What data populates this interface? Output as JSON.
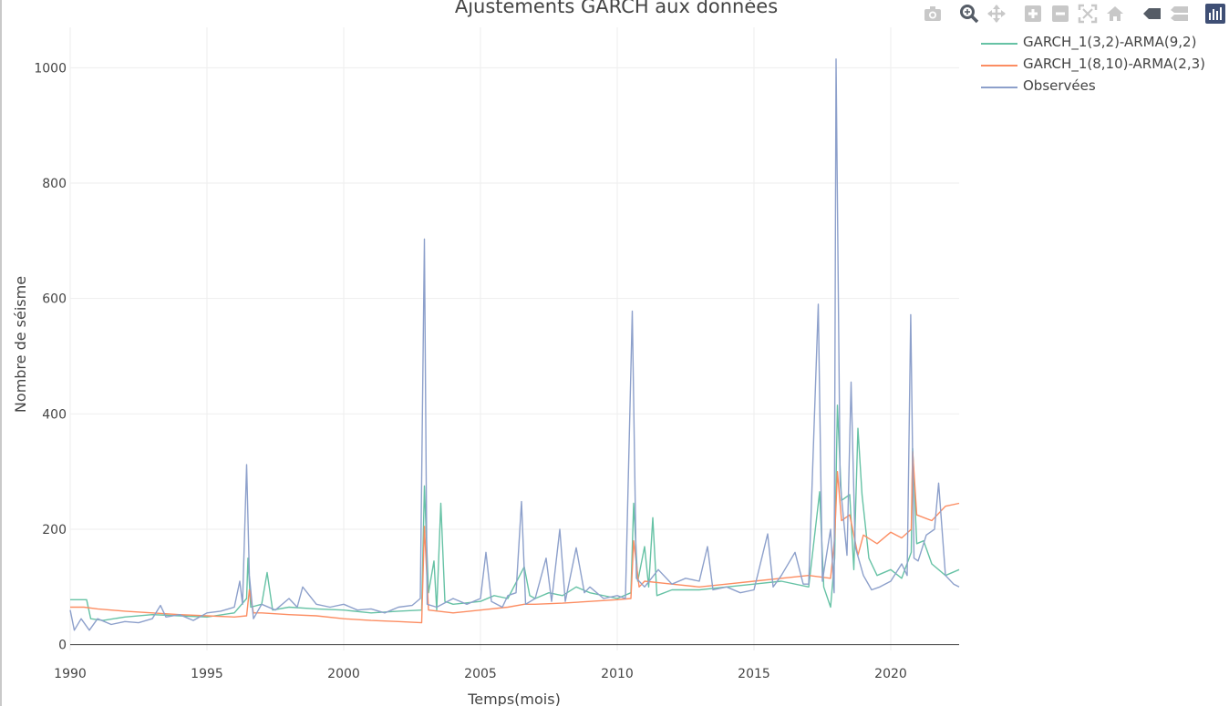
{
  "toolbar": {
    "icons": [
      "camera-icon",
      "zoom-icon",
      "pan-icon",
      "zoom-in-icon",
      "zoom-out-icon",
      "autoscale-icon",
      "home-icon",
      "closest-data-icon",
      "compare-data-icon",
      "plotly-logo-icon"
    ]
  },
  "chart_data": {
    "type": "line",
    "title": "Ajustements GARCH aux données",
    "xlabel": "Temps(mois)",
    "ylabel": "Nombre de séisme",
    "xlim": [
      1990,
      2022.5
    ],
    "ylim": [
      -10,
      1070
    ],
    "xticks": [
      1990,
      1995,
      2000,
      2005,
      2010,
      2015,
      2020
    ],
    "yticks": [
      0,
      200,
      400,
      600,
      800,
      1000
    ],
    "grid": true,
    "legend_position": "top-right",
    "series": [
      {
        "name": "GARCH_1(3,2)-ARMA(9,2)",
        "color": "#66c2a5",
        "points": [
          [
            1990.0,
            78
          ],
          [
            1990.6,
            78
          ],
          [
            1990.75,
            45
          ],
          [
            1991.2,
            42
          ],
          [
            1992.0,
            48
          ],
          [
            1993.0,
            52
          ],
          [
            1994.0,
            50
          ],
          [
            1995.0,
            48
          ],
          [
            1996.0,
            55
          ],
          [
            1996.45,
            80
          ],
          [
            1996.5,
            150
          ],
          [
            1996.6,
            65
          ],
          [
            1997.0,
            70
          ],
          [
            1997.2,
            125
          ],
          [
            1997.4,
            60
          ],
          [
            1998.0,
            65
          ],
          [
            1999.0,
            62
          ],
          [
            2000.0,
            60
          ],
          [
            2001.0,
            55
          ],
          [
            2002.0,
            58
          ],
          [
            2002.85,
            60
          ],
          [
            2002.95,
            275
          ],
          [
            2003.1,
            90
          ],
          [
            2003.3,
            145
          ],
          [
            2003.4,
            60
          ],
          [
            2003.55,
            245
          ],
          [
            2003.7,
            75
          ],
          [
            2004.0,
            70
          ],
          [
            2005.0,
            75
          ],
          [
            2005.5,
            85
          ],
          [
            2006.0,
            80
          ],
          [
            2006.6,
            135
          ],
          [
            2006.8,
            85
          ],
          [
            2007.0,
            80
          ],
          [
            2007.5,
            90
          ],
          [
            2008.0,
            85
          ],
          [
            2008.5,
            100
          ],
          [
            2009.0,
            90
          ],
          [
            2010.0,
            80
          ],
          [
            2010.5,
            90
          ],
          [
            2010.6,
            245
          ],
          [
            2010.75,
            110
          ],
          [
            2011.0,
            170
          ],
          [
            2011.15,
            100
          ],
          [
            2011.3,
            220
          ],
          [
            2011.45,
            85
          ],
          [
            2012.0,
            95
          ],
          [
            2013.0,
            95
          ],
          [
            2014.0,
            100
          ],
          [
            2015.0,
            105
          ],
          [
            2016.0,
            110
          ],
          [
            2017.0,
            100
          ],
          [
            2017.4,
            265
          ],
          [
            2017.55,
            100
          ],
          [
            2017.8,
            65
          ],
          [
            2017.95,
            150
          ],
          [
            2018.05,
            415
          ],
          [
            2018.2,
            250
          ],
          [
            2018.5,
            260
          ],
          [
            2018.65,
            130
          ],
          [
            2018.8,
            375
          ],
          [
            2018.95,
            260
          ],
          [
            2019.2,
            150
          ],
          [
            2019.5,
            120
          ],
          [
            2020.0,
            130
          ],
          [
            2020.4,
            115
          ],
          [
            2020.75,
            160
          ],
          [
            2020.8,
            340
          ],
          [
            2020.95,
            175
          ],
          [
            2021.2,
            180
          ],
          [
            2021.5,
            140
          ],
          [
            2022.0,
            120
          ],
          [
            2022.5,
            130
          ]
        ]
      },
      {
        "name": "GARCH_1(8,10)-ARMA(2,3)",
        "color": "#fc8d62",
        "points": [
          [
            1990.0,
            65
          ],
          [
            1990.5,
            65
          ],
          [
            1991.0,
            62
          ],
          [
            1992.0,
            58
          ],
          [
            1993.0,
            55
          ],
          [
            1994.0,
            52
          ],
          [
            1995.0,
            50
          ],
          [
            1996.0,
            48
          ],
          [
            1996.45,
            50
          ],
          [
            1996.55,
            95
          ],
          [
            1996.7,
            55
          ],
          [
            1997.0,
            55
          ],
          [
            1998.0,
            52
          ],
          [
            1999.0,
            50
          ],
          [
            2000.0,
            45
          ],
          [
            2001.0,
            42
          ],
          [
            2002.0,
            40
          ],
          [
            2002.85,
            38
          ],
          [
            2002.95,
            205
          ],
          [
            2003.1,
            60
          ],
          [
            2004.0,
            55
          ],
          [
            2005.0,
            60
          ],
          [
            2006.0,
            65
          ],
          [
            2006.6,
            70
          ],
          [
            2007.0,
            70
          ],
          [
            2008.0,
            72
          ],
          [
            2009.0,
            75
          ],
          [
            2010.0,
            78
          ],
          [
            2010.5,
            80
          ],
          [
            2010.6,
            180
          ],
          [
            2010.8,
            100
          ],
          [
            2011.0,
            110
          ],
          [
            2012.0,
            105
          ],
          [
            2013.0,
            100
          ],
          [
            2014.0,
            105
          ],
          [
            2015.0,
            110
          ],
          [
            2016.0,
            115
          ],
          [
            2017.0,
            120
          ],
          [
            2017.8,
            115
          ],
          [
            2017.95,
            185
          ],
          [
            2018.05,
            300
          ],
          [
            2018.2,
            215
          ],
          [
            2018.5,
            225
          ],
          [
            2018.8,
            155
          ],
          [
            2019.0,
            190
          ],
          [
            2019.5,
            175
          ],
          [
            2020.0,
            195
          ],
          [
            2020.4,
            185
          ],
          [
            2020.75,
            200
          ],
          [
            2020.8,
            335
          ],
          [
            2020.95,
            225
          ],
          [
            2021.5,
            215
          ],
          [
            2022.0,
            240
          ],
          [
            2022.5,
            245
          ]
        ]
      },
      {
        "name": "Observées",
        "color": "#8da0cb",
        "points": [
          [
            1990.0,
            60
          ],
          [
            1990.15,
            25
          ],
          [
            1990.4,
            45
          ],
          [
            1990.7,
            25
          ],
          [
            1991.0,
            45
          ],
          [
            1991.5,
            35
          ],
          [
            1992.0,
            40
          ],
          [
            1992.5,
            38
          ],
          [
            1993.0,
            45
          ],
          [
            1993.3,
            68
          ],
          [
            1993.5,
            48
          ],
          [
            1994.0,
            52
          ],
          [
            1994.5,
            42
          ],
          [
            1995.0,
            55
          ],
          [
            1995.5,
            58
          ],
          [
            1996.0,
            65
          ],
          [
            1996.2,
            110
          ],
          [
            1996.3,
            70
          ],
          [
            1996.45,
            312
          ],
          [
            1996.55,
            120
          ],
          [
            1996.7,
            45
          ],
          [
            1997.0,
            70
          ],
          [
            1997.5,
            60
          ],
          [
            1998.0,
            80
          ],
          [
            1998.3,
            65
          ],
          [
            1998.5,
            100
          ],
          [
            1999.0,
            70
          ],
          [
            1999.5,
            65
          ],
          [
            2000.0,
            70
          ],
          [
            2000.5,
            60
          ],
          [
            2001.0,
            62
          ],
          [
            2001.5,
            55
          ],
          [
            2002.0,
            65
          ],
          [
            2002.5,
            68
          ],
          [
            2002.8,
            80
          ],
          [
            2002.95,
            703
          ],
          [
            2003.05,
            70
          ],
          [
            2003.4,
            65
          ],
          [
            2004.0,
            80
          ],
          [
            2004.5,
            70
          ],
          [
            2005.0,
            80
          ],
          [
            2005.2,
            160
          ],
          [
            2005.4,
            75
          ],
          [
            2005.8,
            65
          ],
          [
            2006.0,
            85
          ],
          [
            2006.3,
            90
          ],
          [
            2006.5,
            248
          ],
          [
            2006.65,
            70
          ],
          [
            2007.0,
            80
          ],
          [
            2007.4,
            150
          ],
          [
            2007.6,
            75
          ],
          [
            2007.9,
            200
          ],
          [
            2008.1,
            75
          ],
          [
            2008.5,
            168
          ],
          [
            2008.8,
            90
          ],
          [
            2009.0,
            100
          ],
          [
            2009.5,
            80
          ],
          [
            2010.0,
            85
          ],
          [
            2010.3,
            80
          ],
          [
            2010.55,
            578
          ],
          [
            2010.7,
            115
          ],
          [
            2011.0,
            100
          ],
          [
            2011.5,
            130
          ],
          [
            2012.0,
            105
          ],
          [
            2012.5,
            115
          ],
          [
            2013.0,
            110
          ],
          [
            2013.3,
            170
          ],
          [
            2013.5,
            95
          ],
          [
            2014.0,
            100
          ],
          [
            2014.5,
            90
          ],
          [
            2015.0,
            95
          ],
          [
            2015.5,
            192
          ],
          [
            2015.7,
            100
          ],
          [
            2016.0,
            120
          ],
          [
            2016.5,
            160
          ],
          [
            2016.8,
            105
          ],
          [
            2017.0,
            105
          ],
          [
            2017.35,
            590
          ],
          [
            2017.5,
            110
          ],
          [
            2017.8,
            200
          ],
          [
            2017.93,
            90
          ],
          [
            2018.0,
            1015
          ],
          [
            2018.15,
            280
          ],
          [
            2018.4,
            155
          ],
          [
            2018.55,
            455
          ],
          [
            2018.7,
            170
          ],
          [
            2019.0,
            120
          ],
          [
            2019.3,
            95
          ],
          [
            2019.6,
            100
          ],
          [
            2020.0,
            110
          ],
          [
            2020.4,
            140
          ],
          [
            2020.6,
            120
          ],
          [
            2020.73,
            572
          ],
          [
            2020.85,
            150
          ],
          [
            2021.0,
            145
          ],
          [
            2021.3,
            190
          ],
          [
            2021.6,
            200
          ],
          [
            2021.75,
            280
          ],
          [
            2022.0,
            120
          ],
          [
            2022.3,
            105
          ],
          [
            2022.5,
            100
          ]
        ]
      }
    ]
  }
}
